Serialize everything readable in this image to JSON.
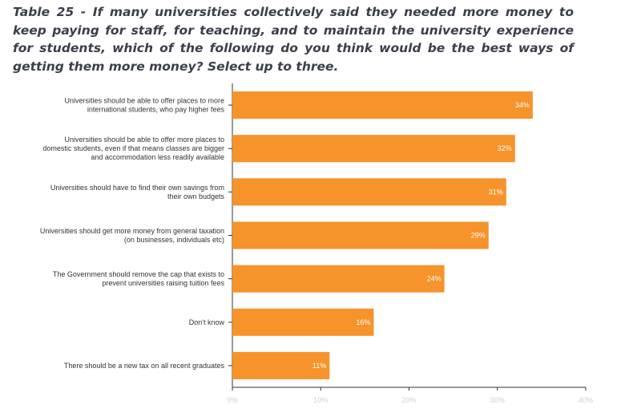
{
  "chart_data": {
    "type": "bar",
    "orientation": "horizontal",
    "title": "Table 25 - If many universities collectively said they needed more money to keep paying for staff, for teaching, and to maintain the university experience for students, which of the following do you think would be the best ways of getting them more money? Select up to three.",
    "categories": [
      [
        "Universities should be able to offer places to more",
        "international students, who pay higher fees"
      ],
      [
        "Universities should be able to offer more places to",
        "domestic students, even if that means classes are bigger",
        "and accommodation less readily available"
      ],
      [
        "Universities should have to find their own savings from",
        "their own budgets"
      ],
      [
        "Universities should get more money from general taxation",
        "(on businesses, individuals etc)"
      ],
      [
        "The Government should remove the cap that exists to",
        "prevent universities raising tuition fees"
      ],
      [
        "Don't know"
      ],
      [
        "There should be a new tax on all recent graduates"
      ]
    ],
    "values": [
      34,
      32,
      31,
      29,
      24,
      16,
      11
    ],
    "value_labels": [
      "34%",
      "32%",
      "31%",
      "29%",
      "24%",
      "16%",
      "11%"
    ],
    "xlim": [
      0,
      40
    ],
    "xticks": [
      0,
      10,
      20,
      30,
      40
    ],
    "xtick_labels": [
      "0%",
      "10%",
      "20%",
      "30%",
      "40%"
    ],
    "bar_color": "#f6932a",
    "grid": false,
    "legend": "none"
  }
}
